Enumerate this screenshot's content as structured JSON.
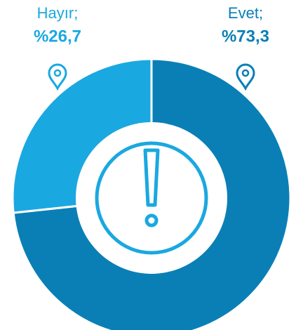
{
  "chart_data": {
    "type": "donut",
    "categories": [
      "Evet;",
      "Hayır;"
    ],
    "values": [
      73.3,
      26.7
    ],
    "value_labels": [
      "%73,3",
      "%26,7"
    ],
    "colors": [
      "#0a7fb6",
      "#1aa8e0"
    ]
  }
}
